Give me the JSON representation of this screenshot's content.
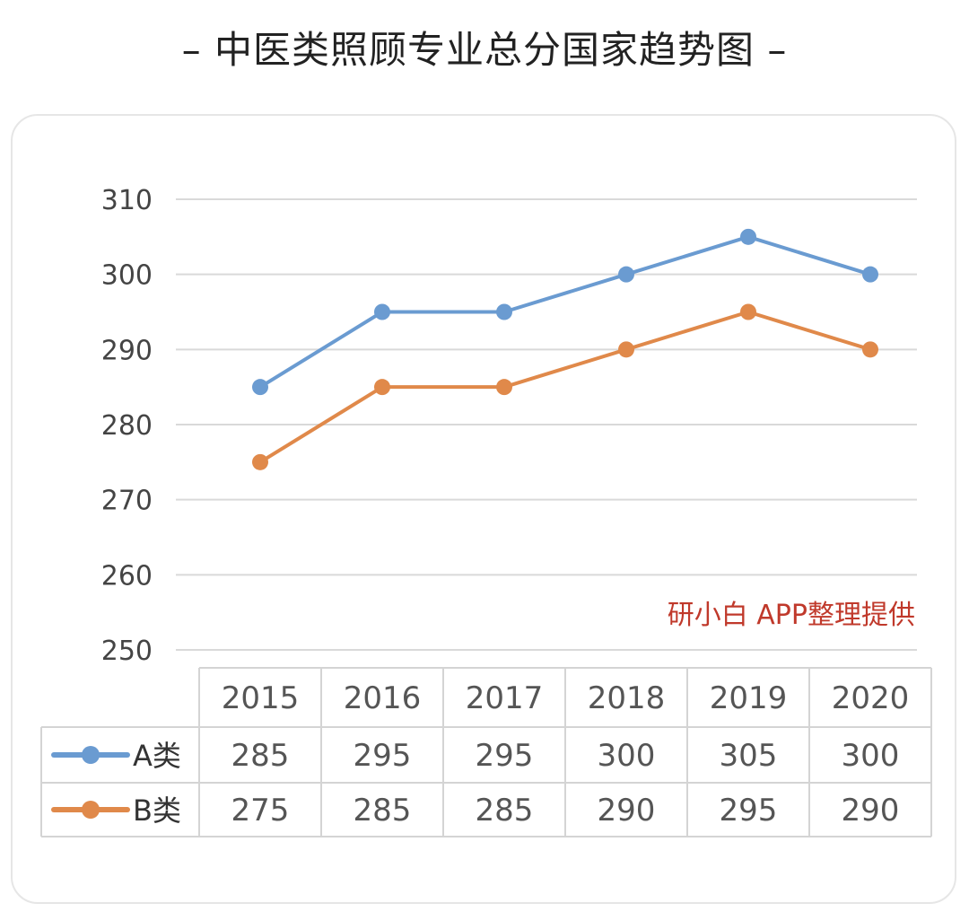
{
  "title": "– 中医类照顾专业总分国家趋势图 –",
  "watermark": "研小白 APP整理提供",
  "colors": {
    "A": "#6a9bd1",
    "B": "#e0894a",
    "grid": "#d9d9d9",
    "watermark": "#c0392b"
  },
  "chart_data": {
    "type": "line",
    "categories": [
      "2015",
      "2016",
      "2017",
      "2018",
      "2019",
      "2020"
    ],
    "series": [
      {
        "name": "A类",
        "values": [
          285,
          295,
          295,
          300,
          305,
          300
        ]
      },
      {
        "name": "B类",
        "values": [
          275,
          285,
          285,
          290,
          295,
          290
        ]
      }
    ],
    "ylim": [
      250,
      310
    ],
    "yticks": [
      "250",
      "260",
      "270",
      "280",
      "290",
      "300",
      "310"
    ],
    "grid": true,
    "legend": "data-table",
    "table": {
      "header": [
        "2015",
        "2016",
        "2017",
        "2018",
        "2019",
        "2020"
      ],
      "rows": [
        {
          "label": "A类",
          "values": [
            "285",
            "295",
            "295",
            "300",
            "305",
            "300"
          ]
        },
        {
          "label": "B类",
          "values": [
            "275",
            "285",
            "285",
            "290",
            "295",
            "290"
          ]
        }
      ]
    }
  }
}
